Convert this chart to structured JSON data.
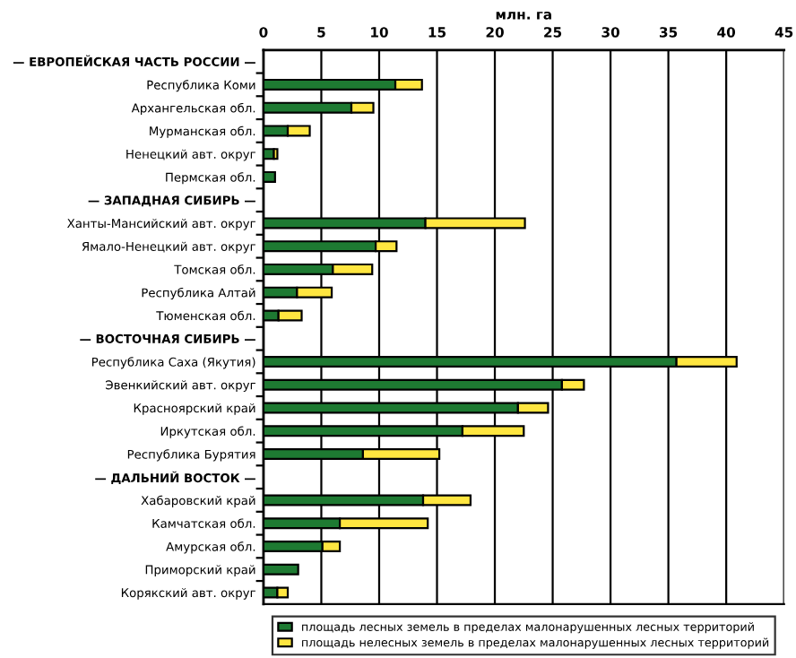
{
  "chart_data": {
    "type": "bar",
    "orientation": "horizontal",
    "stacked": true,
    "xlabel": "млн. га",
    "categories": [
      "— ЕВРОПЕЙСКАЯ ЧАСТЬ РОССИИ —",
      "Республика Коми",
      "Архангельская обл.",
      "Мурманская обл.",
      "Ненецкий авт. округ",
      "Пермская обл.",
      "— ЗАПАДНАЯ СИБИРЬ —",
      "Ханты-Мансийский авт. округ",
      "Ямало-Ненецкий авт. округ",
      "Томская обл.",
      "Республика Алтай",
      "Тюменская обл.",
      "— ВОСТОЧНАЯ СИБИРЬ —",
      "Республика Саха (Якутия)",
      "Эвенкийский авт. округ",
      "Красноярский край",
      "Иркутская обл.",
      "Республика Бурятия",
      "— ДАЛЬНИЙ ВОСТОК —",
      "Хабаровский край",
      "Камчатская обл.",
      "Амурская обл.",
      "Приморский край",
      "Корякский авт. округ"
    ],
    "series": [
      {
        "name": "площадь лесных земель в пределах малонарушенных лесных территорий",
        "color": "#1e7a32",
        "values": [
          null,
          11.4,
          7.6,
          2.1,
          0.9,
          1.0,
          null,
          14.0,
          9.7,
          6.0,
          2.9,
          1.3,
          null,
          35.7,
          25.8,
          22.0,
          17.2,
          8.6,
          null,
          13.8,
          6.6,
          5.1,
          3.0,
          1.2
        ]
      },
      {
        "name": "площадь нелесных земель в пределах малонарушенных лесных территорий",
        "color": "#ffe640",
        "values": [
          null,
          2.3,
          1.9,
          1.9,
          0.3,
          null,
          null,
          8.6,
          1.8,
          3.4,
          3.0,
          2.0,
          null,
          5.2,
          1.9,
          2.6,
          5.3,
          6.6,
          null,
          4.1,
          7.6,
          1.5,
          null,
          0.9
        ]
      }
    ],
    "xlim": [
      0,
      45
    ],
    "xticks": [
      0,
      5,
      10,
      15,
      20,
      25,
      30,
      35,
      40,
      45
    ],
    "grid": "x",
    "legend": "bottom"
  }
}
